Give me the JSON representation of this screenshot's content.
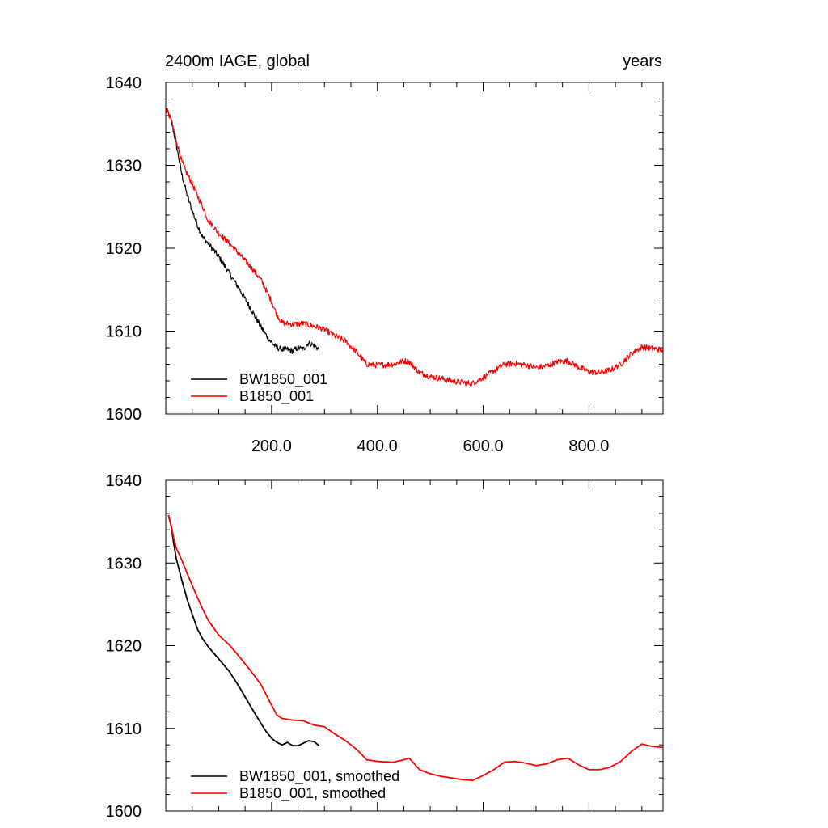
{
  "chart_data": [
    {
      "type": "line",
      "title": "2400m IAGE, global",
      "units_label": "years",
      "xlim": [
        0,
        940
      ],
      "ylim": [
        1600,
        1640
      ],
      "xticks": [
        200,
        400,
        600,
        800
      ],
      "xtick_labels": [
        "200.0",
        "400.0",
        "600.0",
        "800.0"
      ],
      "yticks": [
        1600,
        1610,
        1620,
        1630,
        1640
      ],
      "ytick_labels": [
        "1600",
        "1610",
        "1620",
        "1630",
        "1640"
      ],
      "legend_position": "bottom-left",
      "noise": 0.35,
      "series": [
        {
          "name": "BW1850_001",
          "color": "#000000",
          "points": [
            [
              1,
              1636.8
            ],
            [
              10,
              1635.5
            ],
            [
              20,
              1632.5
            ],
            [
              30,
              1629
            ],
            [
              40,
              1626.5
            ],
            [
              50,
              1624.5
            ],
            [
              60,
              1622.8
            ],
            [
              70,
              1621.3
            ],
            [
              80,
              1620.6
            ],
            [
              100,
              1619
            ],
            [
              120,
              1617
            ],
            [
              140,
              1615
            ],
            [
              160,
              1612.8
            ],
            [
              180,
              1610.5
            ],
            [
              190,
              1609.5
            ],
            [
              200,
              1608.6
            ],
            [
              210,
              1608
            ],
            [
              220,
              1607.8
            ],
            [
              230,
              1607.8
            ],
            [
              240,
              1607.6
            ],
            [
              250,
              1608
            ],
            [
              260,
              1607.8
            ],
            [
              270,
              1608.6
            ],
            [
              280,
              1608.3
            ],
            [
              290,
              1607.8
            ]
          ]
        },
        {
          "name": "B1850_001",
          "color": "#ff0000",
          "points": [
            [
              1,
              1636.8
            ],
            [
              10,
              1635.5
            ],
            [
              20,
              1633
            ],
            [
              30,
              1630.5
            ],
            [
              40,
              1629
            ],
            [
              50,
              1627.8
            ],
            [
              60,
              1626.3
            ],
            [
              70,
              1625
            ],
            [
              80,
              1623.4
            ],
            [
              100,
              1621.8
            ],
            [
              120,
              1620.6
            ],
            [
              140,
              1619.2
            ],
            [
              160,
              1617.8
            ],
            [
              180,
              1616.2
            ],
            [
              200,
              1613.6
            ],
            [
              210,
              1612
            ],
            [
              220,
              1611
            ],
            [
              240,
              1610.8
            ],
            [
              260,
              1610.9
            ],
            [
              280,
              1610.6
            ],
            [
              300,
              1610.2
            ],
            [
              320,
              1609.4
            ],
            [
              340,
              1608.8
            ],
            [
              360,
              1607.5
            ],
            [
              380,
              1606
            ],
            [
              400,
              1605.9
            ],
            [
              430,
              1606
            ],
            [
              450,
              1606.4
            ],
            [
              460,
              1606.3
            ],
            [
              480,
              1605
            ],
            [
              500,
              1604.5
            ],
            [
              520,
              1604.3
            ],
            [
              540,
              1604
            ],
            [
              560,
              1603.8
            ],
            [
              580,
              1603.7
            ],
            [
              600,
              1604.4
            ],
            [
              620,
              1605.2
            ],
            [
              640,
              1606
            ],
            [
              660,
              1606.1
            ],
            [
              680,
              1605.9
            ],
            [
              700,
              1605.6
            ],
            [
              720,
              1605.8
            ],
            [
              740,
              1606.3
            ],
            [
              760,
              1606.4
            ],
            [
              780,
              1605.7
            ],
            [
              800,
              1605.1
            ],
            [
              820,
              1605
            ],
            [
              840,
              1605.3
            ],
            [
              860,
              1606
            ],
            [
              880,
              1607.3
            ],
            [
              900,
              1608.1
            ],
            [
              920,
              1607.9
            ],
            [
              940,
              1607.7
            ]
          ]
        }
      ]
    },
    {
      "type": "line",
      "title": "",
      "xlim": [
        0,
        940
      ],
      "ylim": [
        1600,
        1640
      ],
      "xticks": [
        200,
        400,
        600,
        800
      ],
      "xtick_labels": [],
      "yticks": [
        1600,
        1610,
        1620,
        1630,
        1640
      ],
      "ytick_labels": [
        "1600",
        "1610",
        "1620",
        "1630",
        "1640"
      ],
      "legend_position": "bottom-left",
      "noise": 0,
      "series": [
        {
          "name": "BW1850_001, smoothed",
          "color": "#000000",
          "points": [
            [
              5,
              1635.8
            ],
            [
              10,
              1634.5
            ],
            [
              15,
              1632.4
            ],
            [
              20,
              1630.5
            ],
            [
              30,
              1628
            ],
            [
              40,
              1625.7
            ],
            [
              50,
              1623.8
            ],
            [
              60,
              1622
            ],
            [
              70,
              1620.8
            ],
            [
              80,
              1619.9
            ],
            [
              100,
              1618.4
            ],
            [
              120,
              1616.9
            ],
            [
              140,
              1614.9
            ],
            [
              160,
              1612.7
            ],
            [
              180,
              1610.6
            ],
            [
              190,
              1609.6
            ],
            [
              200,
              1608.8
            ],
            [
              210,
              1608.3
            ],
            [
              220,
              1608
            ],
            [
              230,
              1608.3
            ],
            [
              240,
              1607.9
            ],
            [
              250,
              1607.9
            ],
            [
              260,
              1608.2
            ],
            [
              270,
              1608.5
            ],
            [
              280,
              1608.4
            ],
            [
              290,
              1607.9
            ]
          ]
        },
        {
          "name": "B1850_001, smoothed",
          "color": "#ff0000",
          "points": [
            [
              5,
              1635.8
            ],
            [
              10,
              1634.6
            ],
            [
              15,
              1633
            ],
            [
              20,
              1631.8
            ],
            [
              30,
              1630.4
            ],
            [
              40,
              1628.8
            ],
            [
              50,
              1627.3
            ],
            [
              60,
              1625.8
            ],
            [
              70,
              1624.4
            ],
            [
              80,
              1623.1
            ],
            [
              100,
              1621.3
            ],
            [
              120,
              1620.1
            ],
            [
              140,
              1618.6
            ],
            [
              160,
              1617
            ],
            [
              180,
              1615.3
            ],
            [
              200,
              1612.8
            ],
            [
              210,
              1611.6
            ],
            [
              220,
              1611.2
            ],
            [
              240,
              1611
            ],
            [
              260,
              1610.9
            ],
            [
              280,
              1610.4
            ],
            [
              300,
              1610.2
            ],
            [
              320,
              1609.3
            ],
            [
              340,
              1608.5
            ],
            [
              360,
              1607.5
            ],
            [
              380,
              1606.2
            ],
            [
              400,
              1606
            ],
            [
              430,
              1605.9
            ],
            [
              450,
              1606.2
            ],
            [
              460,
              1606.4
            ],
            [
              480,
              1605
            ],
            [
              500,
              1604.5
            ],
            [
              520,
              1604.2
            ],
            [
              540,
              1604
            ],
            [
              560,
              1603.8
            ],
            [
              580,
              1603.7
            ],
            [
              600,
              1604.3
            ],
            [
              620,
              1605
            ],
            [
              640,
              1605.9
            ],
            [
              660,
              1606
            ],
            [
              680,
              1605.8
            ],
            [
              700,
              1605.5
            ],
            [
              720,
              1605.7
            ],
            [
              740,
              1606.2
            ],
            [
              760,
              1606.4
            ],
            [
              780,
              1605.6
            ],
            [
              800,
              1605
            ],
            [
              820,
              1605
            ],
            [
              840,
              1605.3
            ],
            [
              860,
              1606
            ],
            [
              880,
              1607.2
            ],
            [
              900,
              1608.1
            ],
            [
              920,
              1607.8
            ],
            [
              940,
              1607.7
            ]
          ]
        }
      ]
    }
  ]
}
